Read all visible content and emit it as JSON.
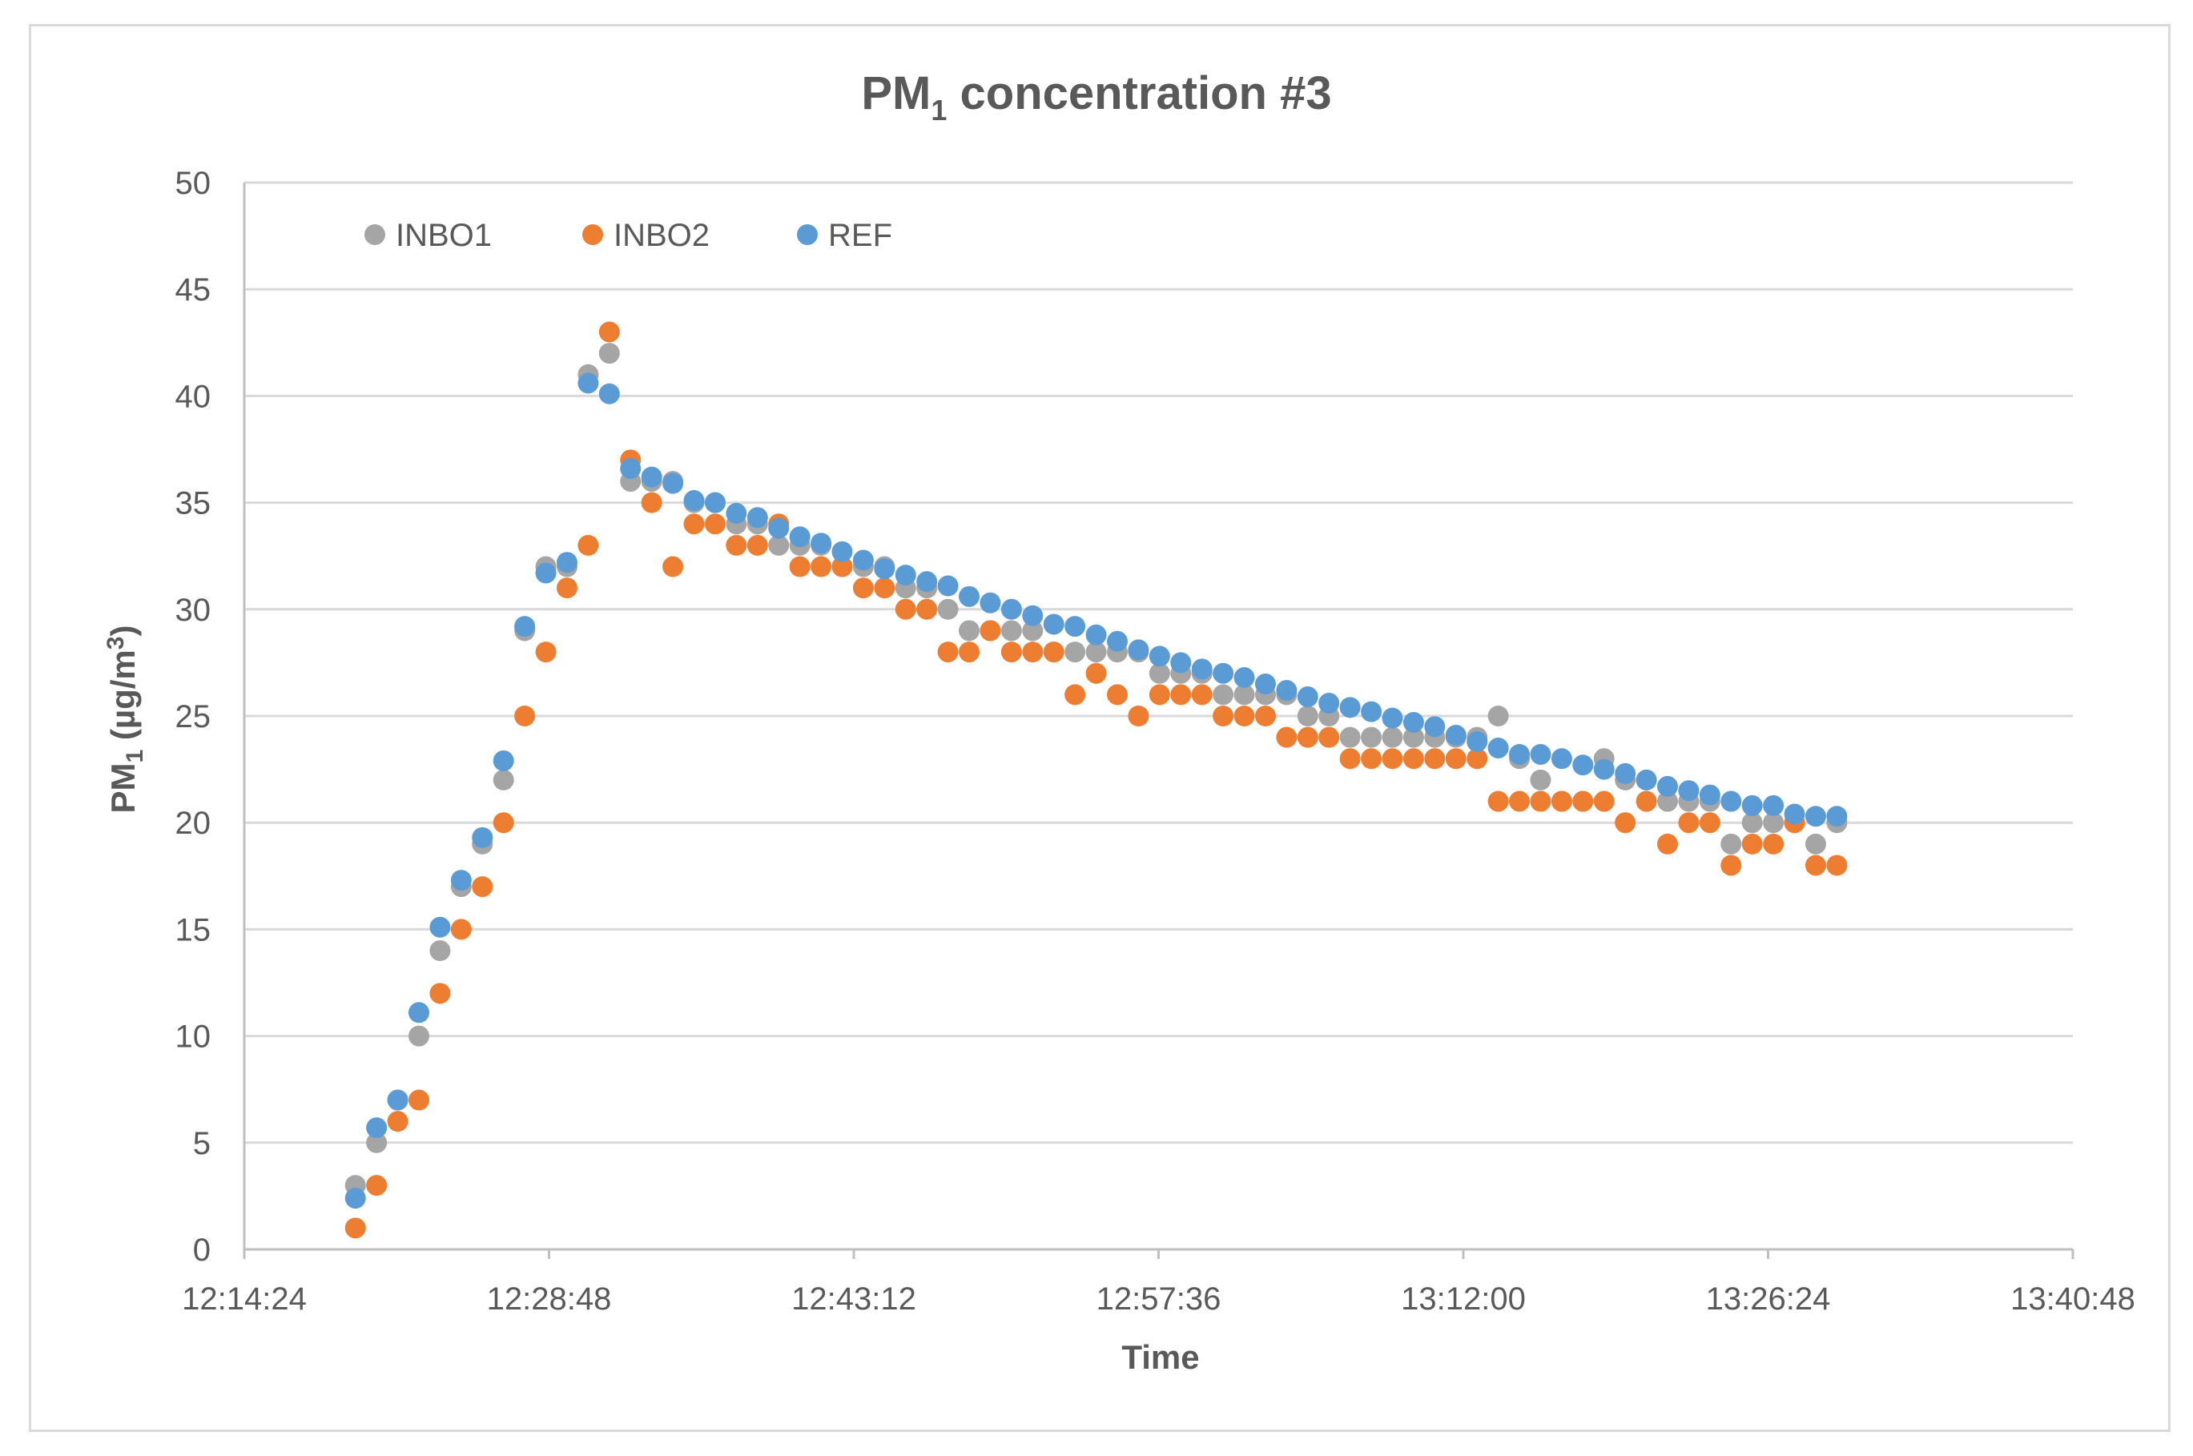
{
  "chart_data": {
    "type": "scatter",
    "title": "PM1 concentration #3",
    "title_main": "PM",
    "title_sub": "1",
    "title_rest": " concentration #3",
    "xlabel": "Time",
    "ylabel": "PM1 (µg/m3)",
    "ylabel_main": "PM",
    "ylabel_sub": "1",
    "ylabel_unit": " (µg/m",
    "ylabel_sup": "3",
    "ylabel_close": ")",
    "x_unit": "minutes after 12:14:24",
    "xlim": [
      0,
      86.4
    ],
    "ylim": [
      0,
      50
    ],
    "x_ticks": [
      {
        "value": 0,
        "label": "12:14:24"
      },
      {
        "value": 14.4,
        "label": "12:28:48"
      },
      {
        "value": 28.8,
        "label": "12:43:12"
      },
      {
        "value": 43.2,
        "label": "12:57:36"
      },
      {
        "value": 57.6,
        "label": "13:12:00"
      },
      {
        "value": 72.0,
        "label": "13:26:24"
      },
      {
        "value": 86.4,
        "label": "13:40:48"
      }
    ],
    "y_ticks": [
      0,
      5,
      10,
      15,
      20,
      25,
      30,
      35,
      40,
      45,
      50
    ],
    "grid": true,
    "legend_position": "top-left",
    "x": [
      5.25,
      6.25,
      7.25,
      8.25,
      9.25,
      10.25,
      11.25,
      12.25,
      13.25,
      14.25,
      15.25,
      16.25,
      17.25,
      18.25,
      19.25,
      20.25,
      21.25,
      22.25,
      23.25,
      24.25,
      25.25,
      26.25,
      27.25,
      28.25,
      29.25,
      30.25,
      31.25,
      32.25,
      33.25,
      34.25,
      35.25,
      36.25,
      37.25,
      38.25,
      39.25,
      40.25,
      41.25,
      42.25,
      43.25,
      44.25,
      45.25,
      46.25,
      47.25,
      48.25,
      49.25,
      50.25,
      51.25,
      52.25,
      53.25,
      54.25,
      55.25,
      56.25,
      57.25,
      58.25,
      59.25,
      60.25,
      61.25,
      62.25,
      63.25,
      64.25,
      65.25,
      66.25,
      67.25,
      68.25,
      69.25,
      70.25,
      71.25,
      72.25,
      73.25,
      74.25,
      75.25
    ],
    "series": [
      {
        "name": "INBO1",
        "color": "#a5a5a5",
        "values": [
          3,
          5,
          7,
          10,
          14,
          17,
          19,
          22,
          29,
          32,
          32,
          41,
          42,
          36,
          36,
          36,
          35,
          35,
          34,
          34,
          33,
          33,
          33,
          32,
          32,
          32,
          31,
          31,
          30,
          29,
          29,
          29,
          29,
          28,
          28,
          28,
          28,
          28,
          27,
          27,
          27,
          26,
          26,
          26,
          26,
          25,
          25,
          24,
          24,
          24,
          24,
          24,
          24,
          24,
          25,
          23,
          22,
          21,
          21,
          23,
          22,
          22,
          21,
          21,
          21,
          19,
          20,
          20,
          20,
          19,
          20
        ]
      },
      {
        "name": "INBO2",
        "color": "#ed7d31",
        "values": [
          1,
          3,
          6,
          7,
          12,
          15,
          17,
          20,
          25,
          28,
          31,
          33,
          43,
          37,
          35,
          32,
          34,
          34,
          33,
          33,
          34,
          32,
          32,
          32,
          31,
          31,
          30,
          30,
          28,
          28,
          29,
          28,
          28,
          28,
          26,
          27,
          26,
          25,
          26,
          26,
          26,
          25,
          25,
          25,
          24,
          24,
          24,
          23,
          23,
          23,
          23,
          23,
          23,
          23,
          21,
          21,
          21,
          21,
          21,
          21,
          20,
          21,
          19,
          20,
          20,
          18,
          19,
          19,
          20,
          18,
          18
        ]
      },
      {
        "name": "REF",
        "color": "#5b9bd5",
        "values": [
          2.4,
          5.7,
          7.0,
          11.1,
          15.1,
          17.3,
          19.3,
          22.9,
          29.2,
          31.7,
          32.2,
          40.6,
          40.1,
          36.6,
          36.2,
          35.9,
          35.1,
          35.0,
          34.5,
          34.3,
          33.8,
          33.4,
          33.1,
          32.7,
          32.3,
          31.9,
          31.6,
          31.3,
          31.1,
          30.6,
          30.3,
          30.0,
          29.7,
          29.3,
          29.2,
          28.8,
          28.5,
          28.1,
          27.8,
          27.5,
          27.2,
          27.0,
          26.8,
          26.5,
          26.2,
          25.9,
          25.6,
          25.4,
          25.2,
          24.9,
          24.7,
          24.5,
          24.1,
          23.8,
          23.5,
          23.2,
          23.2,
          23.0,
          22.7,
          22.5,
          22.3,
          22.0,
          21.7,
          21.5,
          21.3,
          21.0,
          20.8,
          20.8,
          20.4,
          20.3,
          20.3
        ]
      }
    ]
  }
}
